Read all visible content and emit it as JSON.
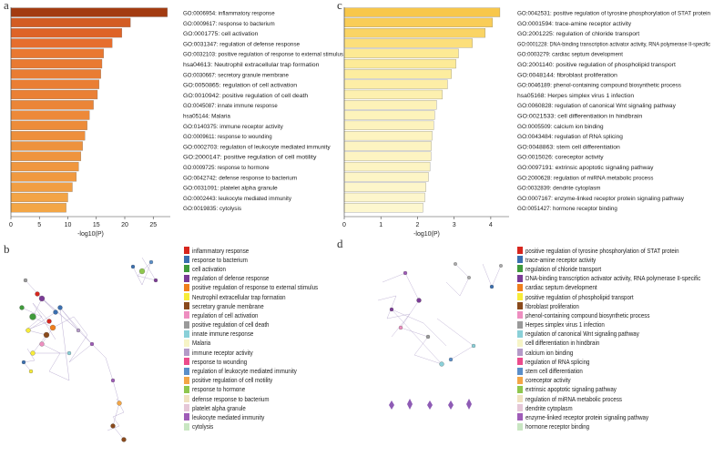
{
  "panels": {
    "a": "a",
    "b": "b",
    "c": "c",
    "d": "d"
  },
  "chart_data": [
    {
      "type": "bar",
      "orientation": "horizontal",
      "panel": "a",
      "xlabel": "-log10(P)",
      "xticks": [
        0,
        5,
        10,
        15,
        20,
        25
      ],
      "xlim": [
        0,
        28
      ],
      "color_scale": [
        "#f3a646",
        "#e5682a",
        "#a33b11"
      ],
      "categories": [
        "GO:0006954: inflammatory response",
        "GO:0009617: response to bacterium",
        "GO:0001775: cell activation",
        "GO:0031347: regulation of defense response",
        "GO:0032103: positive regulation of response to external stimulus",
        "hsa04613: Neutrophil extracellular trap formation",
        "GO:0030667: secretory granule membrane",
        "GO:0050865: regulation of cell activation",
        "GO:0010942: positive regulation of cell death",
        "GO:0045087: innate immune response",
        "hsa05144: Malaria",
        "GO:0140375: immune receptor activity",
        "GO:0009611: response to wounding",
        "GO:0002703: regulation of leukocyte mediated immunity",
        "GO:2000147: positive regulation of cell motility",
        "GO:0009725: response to hormone",
        "GO:0042742: defense response to bacterium",
        "GO:0031091: platelet alpha granule",
        "GO:0002443: leukocyte mediated immunity",
        "GO:0019835: cytolysis"
      ],
      "values": [
        27.5,
        21,
        19.5,
        17.8,
        16.3,
        16,
        15.8,
        15.5,
        15.2,
        14.5,
        13.8,
        13.4,
        13,
        12.6,
        12.3,
        11.9,
        11.5,
        10.8,
        10,
        9.7
      ]
    },
    {
      "type": "bar",
      "orientation": "horizontal",
      "panel": "c",
      "xlabel": "-log10(P)",
      "xticks": [
        0,
        1,
        2,
        3,
        4
      ],
      "xlim": [
        0,
        4.5
      ],
      "color_scale": [
        "#fdf7cf",
        "#fde98f",
        "#f8c74a"
      ],
      "categories": [
        "GO:0042531: positive regulation of tyrosine phosphorylation of STAT protein",
        "GO:0001594: trace-amine receptor activity",
        "GO:2001225: regulation of chloride transport",
        "GO:0001228: DNA-binding transcription activator activity, RNA polymerase II-specific",
        "GO:0003279: cardiac septum development",
        "GO:2001140: positive regulation of phospholipid transport",
        "GO:0048144: fibroblast proliferation",
        "GO:0046189: phenol-containing compound biosynthetic process",
        "hsa05168: Herpes simplex virus 1 infection",
        "GO:0060828: regulation of canonical Wnt signaling pathway",
        "GO:0021533: cell differentiation in hindbrain",
        "GO:0005509: calcium ion binding",
        "GO:0043484: regulation of RNA splicing",
        "GO:0048863: stem cell differentiation",
        "GO:0015026: coreceptor activity",
        "GO:0097191: extrinsic apoptotic signaling pathway",
        "GO:2000628: regulation of miRNA metabolic process",
        "GO:0032839: dendrite cytoplasm",
        "GO:0007167: enzyme-linked receptor protein signaling pathway",
        "GO:0051427: hormone receptor binding"
      ],
      "values": [
        4.25,
        4.05,
        3.85,
        3.5,
        3.12,
        3.05,
        2.93,
        2.82,
        2.68,
        2.52,
        2.47,
        2.44,
        2.4,
        2.38,
        2.37,
        2.34,
        2.3,
        2.23,
        2.2,
        2.15
      ]
    }
  ],
  "legend_b": [
    {
      "label": "inflammatory response",
      "color": "#d7261e"
    },
    {
      "label": "response to bacterium",
      "color": "#3a6fb0"
    },
    {
      "label": "cell activation",
      "color": "#3f9a3b"
    },
    {
      "label": "regulation of defense response",
      "color": "#7b3b96"
    },
    {
      "label": "positive regulation of response to external stimulus",
      "color": "#f07f1c"
    },
    {
      "label": "Neutrophil extracellular trap formation",
      "color": "#f7ec38"
    },
    {
      "label": "secretory granule membrane",
      "color": "#8a4a1c"
    },
    {
      "label": "regulation of cell activation",
      "color": "#ee8ec0"
    },
    {
      "label": "positive regulation of cell death",
      "color": "#9a9a9a"
    },
    {
      "label": "innate immune response",
      "color": "#8ad0d8"
    },
    {
      "label": "Malaria",
      "color": "#f6f4c6"
    },
    {
      "label": "immune receptor activity",
      "color": "#b49ac8"
    },
    {
      "label": "response to wounding",
      "color": "#ec4c8c"
    },
    {
      "label": "regulation of leukocyte mediated immunity",
      "color": "#5b8fc9"
    },
    {
      "label": "positive regulation of cell motility",
      "color": "#f3a646"
    },
    {
      "label": "response to hormone",
      "color": "#8fc74e"
    },
    {
      "label": "defense response to bacterium",
      "color": "#f0e2c0"
    },
    {
      "label": "platelet alpha granule",
      "color": "#e5c7d7"
    },
    {
      "label": "leukocyte mediated immunity",
      "color": "#9f5cb8"
    },
    {
      "label": "cytolysis",
      "color": "#c8e6c2"
    }
  ],
  "legend_d": [
    {
      "label": "positive regulation of tyrosine phosphorylation of STAT protein",
      "color": "#d7261e"
    },
    {
      "label": "trace-amine receptor activity",
      "color": "#3a6fb0"
    },
    {
      "label": "regulation of chloride transport",
      "color": "#3f9a3b"
    },
    {
      "label": "DNA-binding transcription activator activity, RNA polymerase II-specific",
      "color": "#7b3b96"
    },
    {
      "label": "cardiac septum development",
      "color": "#f07f1c"
    },
    {
      "label": "positive regulation of phospholipid transport",
      "color": "#f7ec38"
    },
    {
      "label": "fibroblast proliferation",
      "color": "#8a4a1c"
    },
    {
      "label": "phenol-containing compound biosynthetic process",
      "color": "#ee8ec0"
    },
    {
      "label": "Herpes simplex virus 1 infection",
      "color": "#9a9a9a"
    },
    {
      "label": "regulation of canonical Wnt signaling pathway",
      "color": "#8ad0d8"
    },
    {
      "label": "cell differentiation in hindbrain",
      "color": "#f6f4c6"
    },
    {
      "label": "calcium ion binding",
      "color": "#b49ac8"
    },
    {
      "label": "regulation of RNA splicing",
      "color": "#ec4c8c"
    },
    {
      "label": "stem cell differentiation",
      "color": "#5b8fc9"
    },
    {
      "label": "coreceptor activity",
      "color": "#f3a646"
    },
    {
      "label": "extrinsic apoptotic signaling pathway",
      "color": "#8fc74e"
    },
    {
      "label": "regulation of miRNA metabolic process",
      "color": "#f0e2c0"
    },
    {
      "label": "dendrite cytoplasm",
      "color": "#e5c7d7"
    },
    {
      "label": "enzyme-linked receptor protein signaling pathway",
      "color": "#9f5cb8"
    },
    {
      "label": "hormone receptor binding",
      "color": "#c8e6c2"
    }
  ]
}
